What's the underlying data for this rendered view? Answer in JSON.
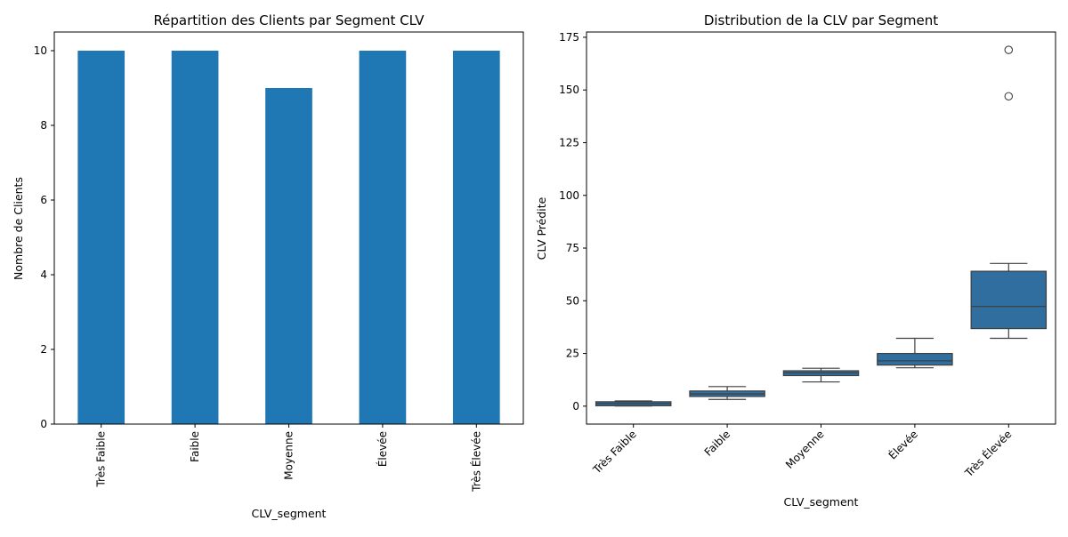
{
  "chart_data": [
    {
      "type": "bar",
      "title": "Répartition des Clients par Segment CLV",
      "xlabel": "CLV_segment",
      "ylabel": "Nombre de Clients",
      "categories": [
        "Très Faible",
        "Faible",
        "Moyenne",
        "Élevée",
        "Très Élevée"
      ],
      "values": [
        10,
        10,
        9,
        10,
        10
      ],
      "ylim": [
        0,
        10.5
      ],
      "yticks": [
        0,
        2,
        4,
        6,
        8,
        10
      ],
      "color": "#1f77b4",
      "grid": false,
      "xtick_rotation": 90
    },
    {
      "type": "box",
      "title": "Distribution de la CLV par Segment",
      "xlabel": "CLV_segment",
      "ylabel": "CLV Prédite",
      "categories": [
        "Très Faible",
        "Faible",
        "Moyenne",
        "Élevée",
        "Très Élevée"
      ],
      "boxes": [
        {
          "whisker_low": 0.1,
          "q1": 0.2,
          "median": 1.2,
          "q3": 2.1,
          "whisker_high": 2.5,
          "outliers": []
        },
        {
          "whisker_low": 3.2,
          "q1": 4.6,
          "median": 5.8,
          "q3": 7.2,
          "whisker_high": 9.3,
          "outliers": []
        },
        {
          "whisker_low": 11.5,
          "q1": 14.5,
          "median": 15.8,
          "q3": 16.8,
          "whisker_high": 18.0,
          "outliers": []
        },
        {
          "whisker_low": 18.2,
          "q1": 19.5,
          "median": 21.5,
          "q3": 25.0,
          "whisker_high": 32.2,
          "outliers": []
        },
        {
          "whisker_low": 32.2,
          "q1": 36.8,
          "median": 47.3,
          "q3": 64.0,
          "whisker_high": 67.7,
          "outliers": [
            147.0,
            169.0
          ]
        }
      ],
      "ylim": [
        -8.5,
        177.5
      ],
      "yticks": [
        0,
        25,
        50,
        75,
        100,
        125,
        150,
        175
      ],
      "color": "#2f6e9e",
      "grid": false,
      "xtick_rotation": 45
    }
  ]
}
